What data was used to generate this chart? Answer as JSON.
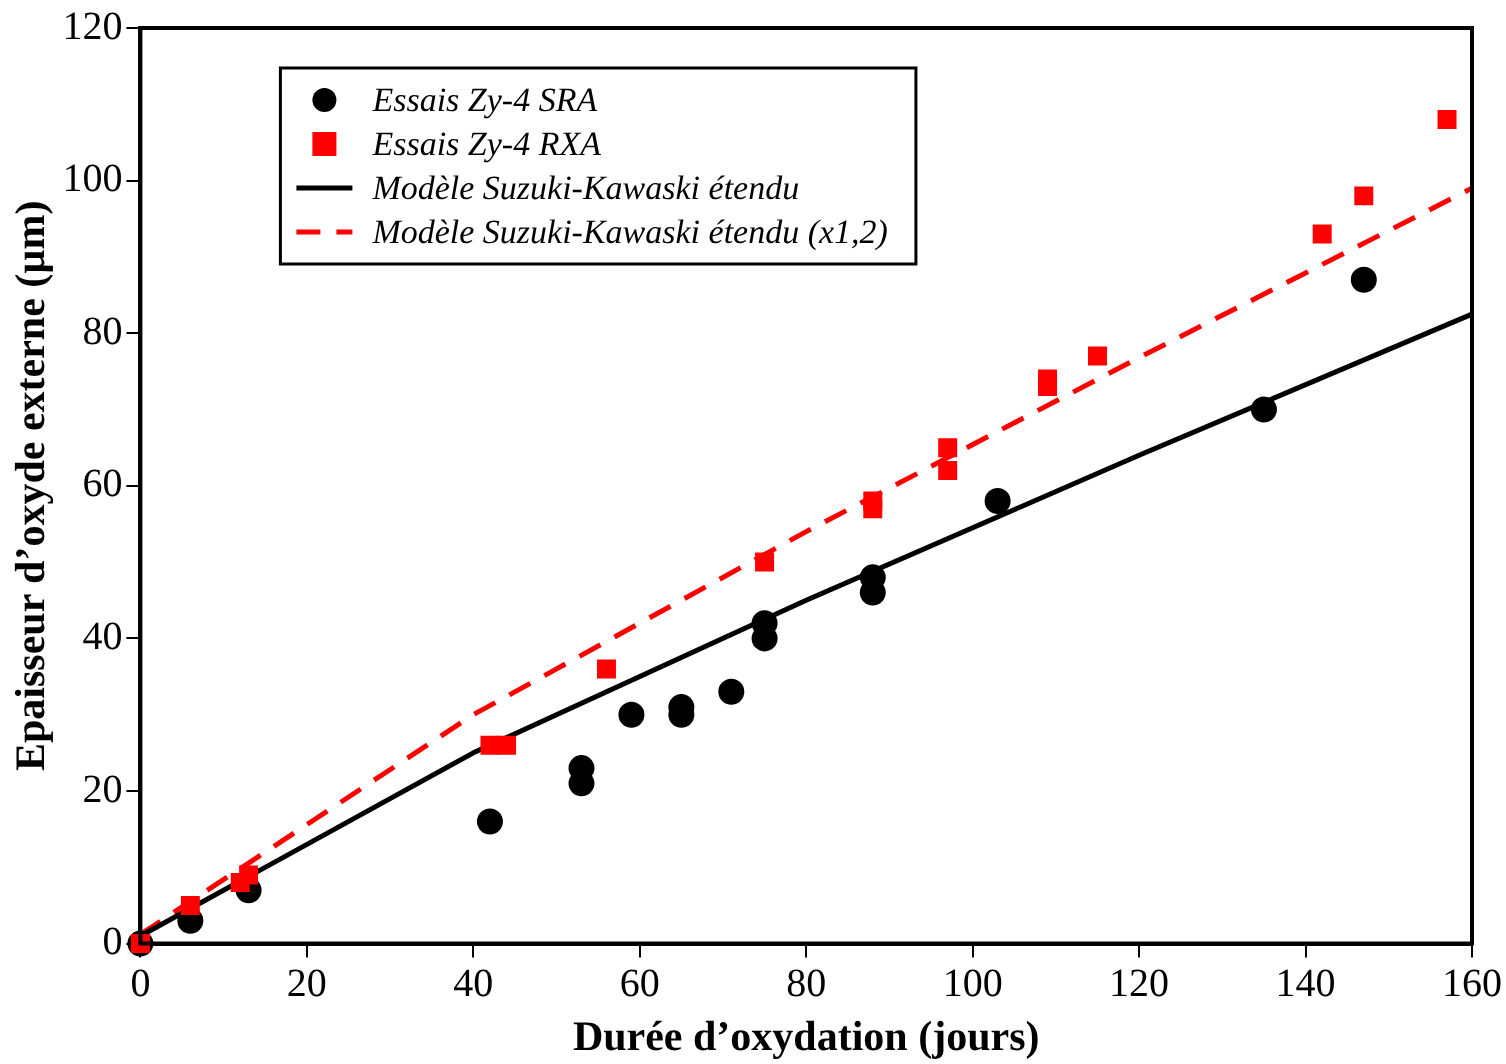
{
  "chart_data": {
    "type": "scatter",
    "xlabel": "Durée d’oxydation (jours)",
    "ylabel": "Epaisseur d’oxyde externe (µm)",
    "xlim": [
      0,
      160
    ],
    "xticks": [
      0,
      20,
      40,
      60,
      80,
      100,
      120,
      140,
      160
    ],
    "ylim": [
      0,
      120
    ],
    "yticks": [
      0,
      20,
      40,
      60,
      80,
      100,
      120
    ],
    "grid": false,
    "legend": "top left",
    "series": [
      {
        "name": "Essais Zy-4 SRA",
        "type": "scatter",
        "marker": "circle",
        "color": "#000000",
        "x": [
          0,
          6,
          13,
          42,
          53,
          53,
          59,
          65,
          65,
          71,
          75,
          75,
          88,
          88,
          103,
          135,
          147
        ],
        "values": [
          0,
          3,
          7,
          16,
          21,
          23,
          30,
          30,
          31,
          33,
          40,
          42,
          46,
          48,
          58,
          70,
          87
        ]
      },
      {
        "name": "Essais Zy-4 RXA",
        "type": "scatter",
        "marker": "square",
        "color": "#ff0000",
        "x": [
          0,
          6,
          12,
          13,
          42,
          44,
          56,
          75,
          88,
          88,
          97,
          97,
          109,
          109,
          115,
          142,
          147,
          157
        ],
        "values": [
          0,
          5,
          8,
          9,
          26,
          26,
          36,
          50,
          57,
          58,
          62,
          65,
          73,
          74,
          77,
          93,
          98,
          108
        ]
      },
      {
        "name": "Modèle Suzuki-Kawaski étendu",
        "type": "line",
        "line_style": "solid",
        "color": "#000000",
        "x": [
          0,
          40,
          80,
          120,
          160
        ],
        "values": [
          1,
          25,
          45,
          64,
          82.5
        ]
      },
      {
        "name": "Modèle Suzuki-Kawaski étendu (x1,2)",
        "type": "line",
        "line_style": "dashed",
        "color": "#ff0000",
        "x": [
          0,
          40,
          80,
          120,
          160
        ],
        "values": [
          1.2,
          30,
          54,
          76.8,
          99
        ]
      }
    ]
  }
}
